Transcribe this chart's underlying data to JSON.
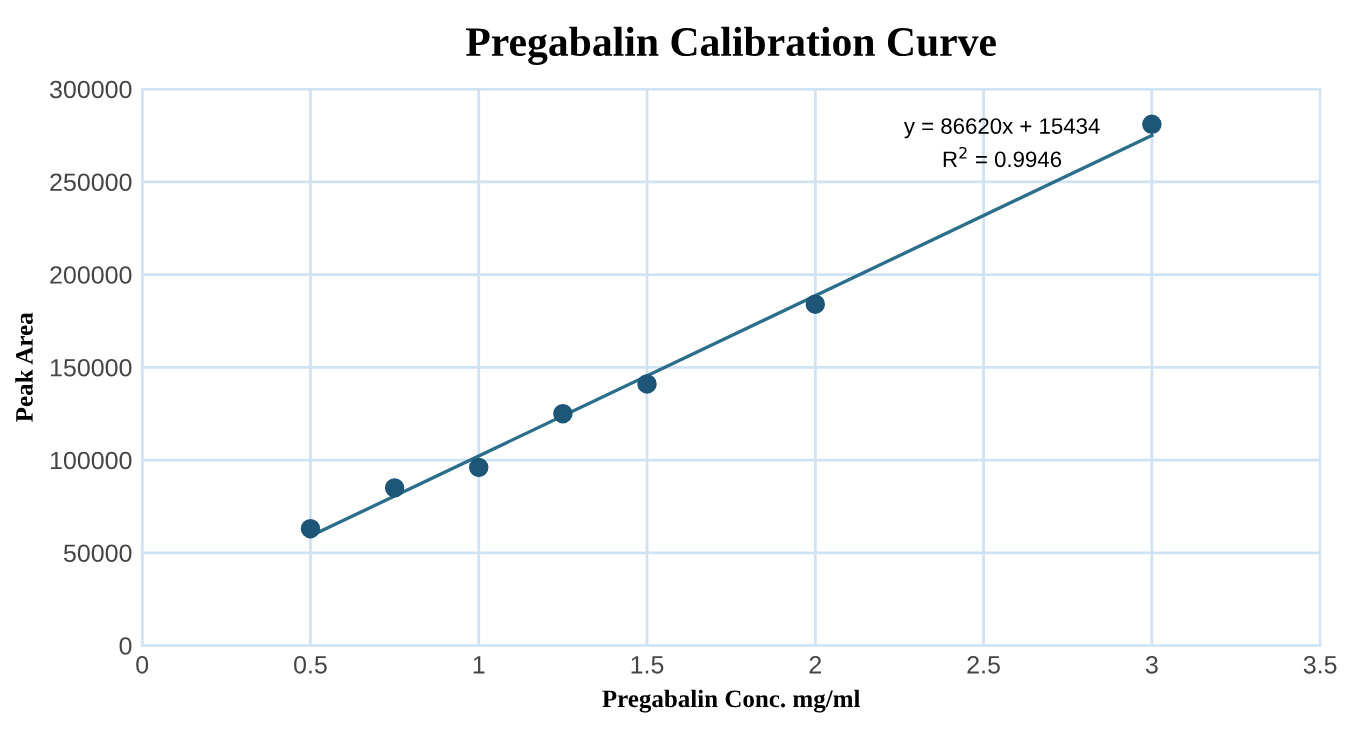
{
  "chart_data": {
    "type": "scatter",
    "title": "Pregabalin Calibration Curve",
    "xlabel": "Pregabalin Conc. mg/ml",
    "ylabel": "Peak Area",
    "x": [
      0.5,
      0.75,
      1,
      1.25,
      1.5,
      2,
      3
    ],
    "series": [
      {
        "color": "#1d5677",
        "marker": "circle",
        "values": [
          63000,
          85000,
          96000,
          125000,
          141000,
          184000,
          281000
        ]
      },
      {
        "type": "line",
        "color": "#2a6e8c",
        "x": [
          0.5,
          3
        ],
        "values": [
          59000,
          275000
        ],
        "marker": "none",
        "line_style": "solid"
      }
    ],
    "annotations": [
      "y = 86620x + 15434",
      "R$^{2}$ = 0.9946"
    ],
    "xlim": [
      0,
      3.5
    ],
    "xticks": [
      0,
      0.5,
      1,
      1.5,
      2,
      2.5,
      3,
      3.5
    ],
    "ylim": [
      0,
      300000
    ],
    "yticks": [
      0,
      50000,
      100000,
      150000,
      200000,
      250000,
      300000
    ],
    "grid": true,
    "legend": false
  }
}
